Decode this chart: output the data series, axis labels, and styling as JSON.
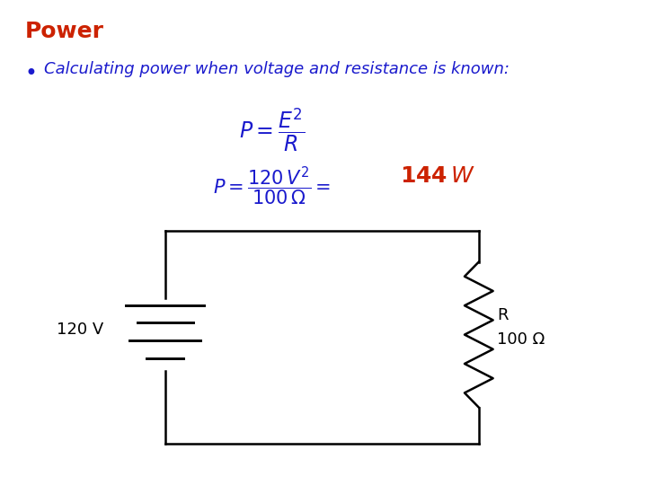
{
  "title": "Power",
  "title_color": "#CC2200",
  "title_fontsize": 18,
  "bullet_text": "Calculating power when voltage and resistance is known:",
  "bullet_color": "#1A1ACD",
  "bullet_fontsize": 13,
  "formula1_color": "#1A1ACD",
  "formula1_fontsize": 17,
  "formula2_blue_color": "#1A1ACD",
  "formula2_red_color": "#CC2200",
  "formula2_fontsize": 15,
  "bg_color": "#FFFFFF",
  "circuit_line_color": "#000000",
  "circuit_lw": 1.8,
  "voltage_label": "120 V",
  "resistance_label_R": "R",
  "resistance_label_val": "100 Ω"
}
